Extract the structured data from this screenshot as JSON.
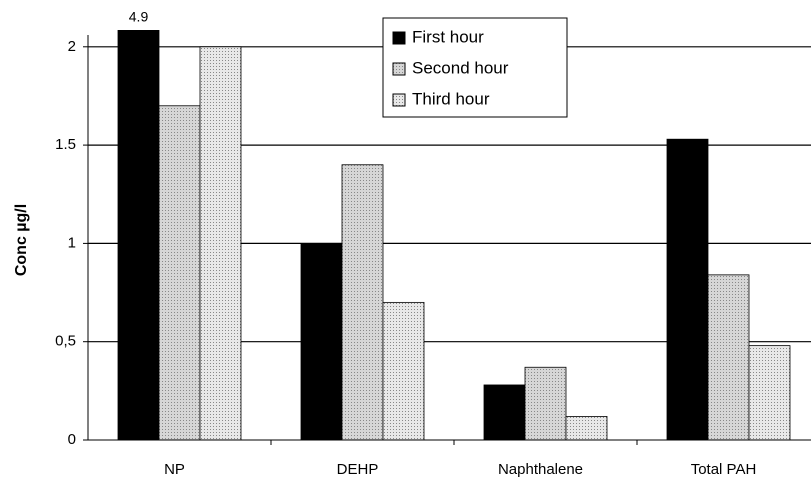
{
  "chart_data": {
    "type": "bar",
    "y_label": "Conc µg/l",
    "categories": [
      "NP",
      "DEHP",
      "Naphthalene",
      "Total PAH"
    ],
    "series": [
      {
        "name": "First hour",
        "color": "#000000",
        "values": [
          4.9,
          1.0,
          0.28,
          1.53
        ],
        "value_labels": [
          "4.9",
          null,
          null,
          null
        ]
      },
      {
        "name": "Second hour",
        "color": "#d6d6d6",
        "values": [
          1.7,
          1.4,
          0.37,
          0.84
        ]
      },
      {
        "name": "Third hour",
        "color": "#e8e8e8",
        "values": [
          2.0,
          0.7,
          0.12,
          0.48
        ]
      }
    ],
    "ylim": [
      0,
      2.06
    ],
    "yticks": [
      0,
      {
        "value": 0.5,
        "label": "0,5"
      },
      1,
      1.5,
      2
    ],
    "grid": true,
    "legend": "top"
  }
}
